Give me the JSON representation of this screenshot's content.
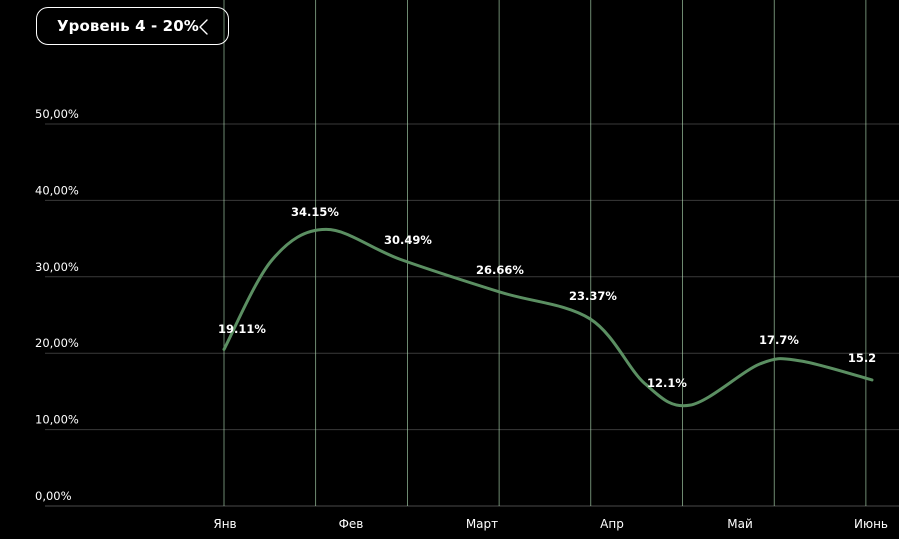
{
  "level_selector": {
    "label": "Уровень 4 - 20%",
    "icon": "chevron-left-icon"
  },
  "colors": {
    "background": "#000000",
    "line": "#5b8f62",
    "vertical_grid": "#b7e6bb",
    "horizontal_grid": "#3a3a3a",
    "text": "#ffffff"
  },
  "chart_data": {
    "type": "line",
    "title": "",
    "xlabel": "",
    "ylabel": "",
    "ylim": [
      0,
      50
    ],
    "y_ticks": [
      "0,00%",
      "10,00%",
      "20,00%",
      "30,00%",
      "40,00%",
      "50,00%"
    ],
    "x_tick_labels": [
      "Янв",
      "Фев",
      "Март",
      "Апр",
      "Май",
      "Июнь"
    ],
    "series": [
      {
        "points": [
          {
            "label": "19.11%",
            "y": 20.5
          },
          {
            "label": "34.15%",
            "y": 36.0
          },
          {
            "label": "30.49%",
            "y": 32.0
          },
          {
            "label": "26.66%",
            "y": 28.0
          },
          {
            "label": "23.37%",
            "y": 24.5
          },
          {
            "label": "12.1%",
            "y": 13.2
          },
          {
            "label": "17.7%",
            "y": 19.0
          },
          {
            "label": "15.2",
            "y": 16.5
          }
        ]
      }
    ],
    "grid": true
  }
}
